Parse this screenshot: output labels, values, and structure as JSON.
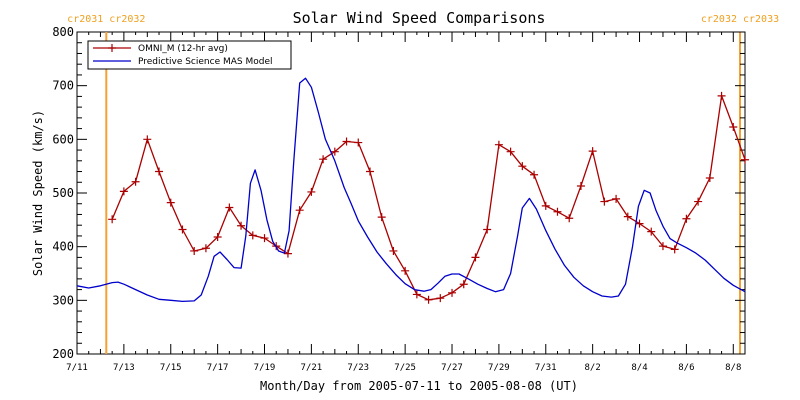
{
  "chart_data": {
    "type": "line",
    "title": "Solar Wind Speed Comparisons",
    "xlabel": "Month/Day from 2005-07-11 to 2005-08-08 (UT)",
    "ylabel": "Solar Wind Speed (km/s)",
    "x_unit": "days since 2005-07-11 00:00 UT",
    "xlim": [
      0,
      28.5
    ],
    "ylim": [
      200,
      800
    ],
    "x_ticks": [
      {
        "x": 0,
        "label": "7/11"
      },
      {
        "x": 2,
        "label": "7/13"
      },
      {
        "x": 4,
        "label": "7/15"
      },
      {
        "x": 6,
        "label": "7/17"
      },
      {
        "x": 8,
        "label": "7/19"
      },
      {
        "x": 10,
        "label": "7/21"
      },
      {
        "x": 12,
        "label": "7/23"
      },
      {
        "x": 14,
        "label": "7/25"
      },
      {
        "x": 16,
        "label": "7/27"
      },
      {
        "x": 18,
        "label": "7/29"
      },
      {
        "x": 20,
        "label": "7/31"
      },
      {
        "x": 22,
        "label": "8/2"
      },
      {
        "x": 24,
        "label": "8/4"
      },
      {
        "x": 26,
        "label": "8/6"
      },
      {
        "x": 28,
        "label": "8/8"
      }
    ],
    "y_ticks": [
      200,
      300,
      400,
      500,
      600,
      700,
      800
    ],
    "grid": false,
    "legend_placement": "top-left",
    "carrington_markers": [
      {
        "x": 1.25,
        "label_left": "cr2031",
        "label_right": "cr2032",
        "color": "#f5a030"
      },
      {
        "x": 29.2,
        "label_left": "cr2032",
        "label_right": "cr2033",
        "color": "#f5a030"
      }
    ],
    "series": [
      {
        "name": "OMNI_M (12-hr avg)",
        "color": "#aa0000",
        "marker": "plus",
        "points": [
          [
            1.5,
            451
          ],
          [
            2.0,
            503
          ],
          [
            2.5,
            521
          ],
          [
            3.0,
            600
          ],
          [
            3.5,
            540
          ],
          [
            4.0,
            482
          ],
          [
            4.5,
            432
          ],
          [
            5.0,
            392
          ],
          [
            5.5,
            397
          ],
          [
            6.0,
            418
          ],
          [
            6.5,
            473
          ],
          [
            7.0,
            439
          ],
          [
            7.5,
            421
          ],
          [
            8.0,
            416
          ],
          [
            8.5,
            401
          ],
          [
            9.0,
            387
          ],
          [
            9.5,
            468
          ],
          [
            10.0,
            502
          ],
          [
            10.5,
            563
          ],
          [
            11.0,
            577
          ],
          [
            11.5,
            596
          ],
          [
            12.0,
            594
          ],
          [
            12.5,
            540
          ],
          [
            13.0,
            455
          ],
          [
            13.5,
            392
          ],
          [
            14.0,
            355
          ],
          [
            14.5,
            311
          ],
          [
            15.0,
            301
          ],
          [
            15.5,
            304
          ],
          [
            16.0,
            314
          ],
          [
            16.5,
            330
          ],
          [
            17.0,
            380
          ],
          [
            17.5,
            432
          ],
          [
            18.0,
            590
          ],
          [
            18.5,
            577
          ],
          [
            19.0,
            550
          ],
          [
            19.5,
            534
          ],
          [
            20.0,
            476
          ],
          [
            20.5,
            465
          ],
          [
            21.0,
            453
          ],
          [
            21.5,
            513
          ],
          [
            22.0,
            578
          ],
          [
            22.5,
            484
          ],
          [
            23.0,
            489
          ],
          [
            23.5,
            456
          ],
          [
            24.0,
            443
          ],
          [
            24.5,
            428
          ],
          [
            25.0,
            401
          ],
          [
            25.5,
            395
          ],
          [
            26.0,
            452
          ],
          [
            26.5,
            484
          ],
          [
            27.0,
            528
          ],
          [
            27.5,
            681
          ],
          [
            28.0,
            623
          ],
          [
            28.5,
            562
          ]
        ]
      },
      {
        "name": "Predictive Science MAS Model",
        "color": "#0000cc",
        "marker": "none",
        "points": [
          [
            0.0,
            327
          ],
          [
            0.5,
            323
          ],
          [
            1.0,
            327
          ],
          [
            1.5,
            333
          ],
          [
            1.75,
            334
          ],
          [
            2.0,
            330
          ],
          [
            2.5,
            320
          ],
          [
            3.0,
            310
          ],
          [
            3.5,
            302
          ],
          [
            4.0,
            300
          ],
          [
            4.5,
            298
          ],
          [
            5.0,
            299
          ],
          [
            5.3,
            310
          ],
          [
            5.6,
            345
          ],
          [
            5.85,
            382
          ],
          [
            6.1,
            390
          ],
          [
            6.4,
            376
          ],
          [
            6.7,
            361
          ],
          [
            7.0,
            360
          ],
          [
            7.2,
            420
          ],
          [
            7.4,
            518
          ],
          [
            7.6,
            543
          ],
          [
            7.85,
            505
          ],
          [
            8.1,
            450
          ],
          [
            8.35,
            410
          ],
          [
            8.6,
            392
          ],
          [
            8.85,
            388
          ],
          [
            9.05,
            430
          ],
          [
            9.25,
            560
          ],
          [
            9.5,
            705
          ],
          [
            9.75,
            714
          ],
          [
            10.0,
            697
          ],
          [
            10.3,
            650
          ],
          [
            10.6,
            600
          ],
          [
            11.0,
            560
          ],
          [
            11.4,
            510
          ],
          [
            11.7,
            480
          ],
          [
            12.0,
            448
          ],
          [
            12.4,
            418
          ],
          [
            12.8,
            390
          ],
          [
            13.2,
            368
          ],
          [
            13.6,
            348
          ],
          [
            14.0,
            331
          ],
          [
            14.4,
            320
          ],
          [
            14.8,
            317
          ],
          [
            15.1,
            320
          ],
          [
            15.4,
            332
          ],
          [
            15.7,
            345
          ],
          [
            16.0,
            349
          ],
          [
            16.3,
            349
          ],
          [
            16.7,
            340
          ],
          [
            17.1,
            330
          ],
          [
            17.5,
            322
          ],
          [
            17.85,
            316
          ],
          [
            18.2,
            320
          ],
          [
            18.5,
            350
          ],
          [
            18.8,
            420
          ],
          [
            19.0,
            472
          ],
          [
            19.3,
            490
          ],
          [
            19.6,
            470
          ],
          [
            20.0,
            430
          ],
          [
            20.4,
            395
          ],
          [
            20.8,
            365
          ],
          [
            21.2,
            343
          ],
          [
            21.6,
            327
          ],
          [
            22.0,
            316
          ],
          [
            22.4,
            308
          ],
          [
            22.8,
            306
          ],
          [
            23.1,
            308
          ],
          [
            23.4,
            330
          ],
          [
            23.7,
            400
          ],
          [
            23.95,
            475
          ],
          [
            24.2,
            505
          ],
          [
            24.45,
            500
          ],
          [
            24.7,
            468
          ],
          [
            25.0,
            438
          ],
          [
            25.3,
            415
          ],
          [
            25.6,
            407
          ],
          [
            26.0,
            398
          ],
          [
            26.4,
            388
          ],
          [
            26.8,
            375
          ],
          [
            27.2,
            358
          ],
          [
            27.6,
            341
          ],
          [
            28.0,
            328
          ],
          [
            28.5,
            316
          ]
        ]
      }
    ]
  }
}
